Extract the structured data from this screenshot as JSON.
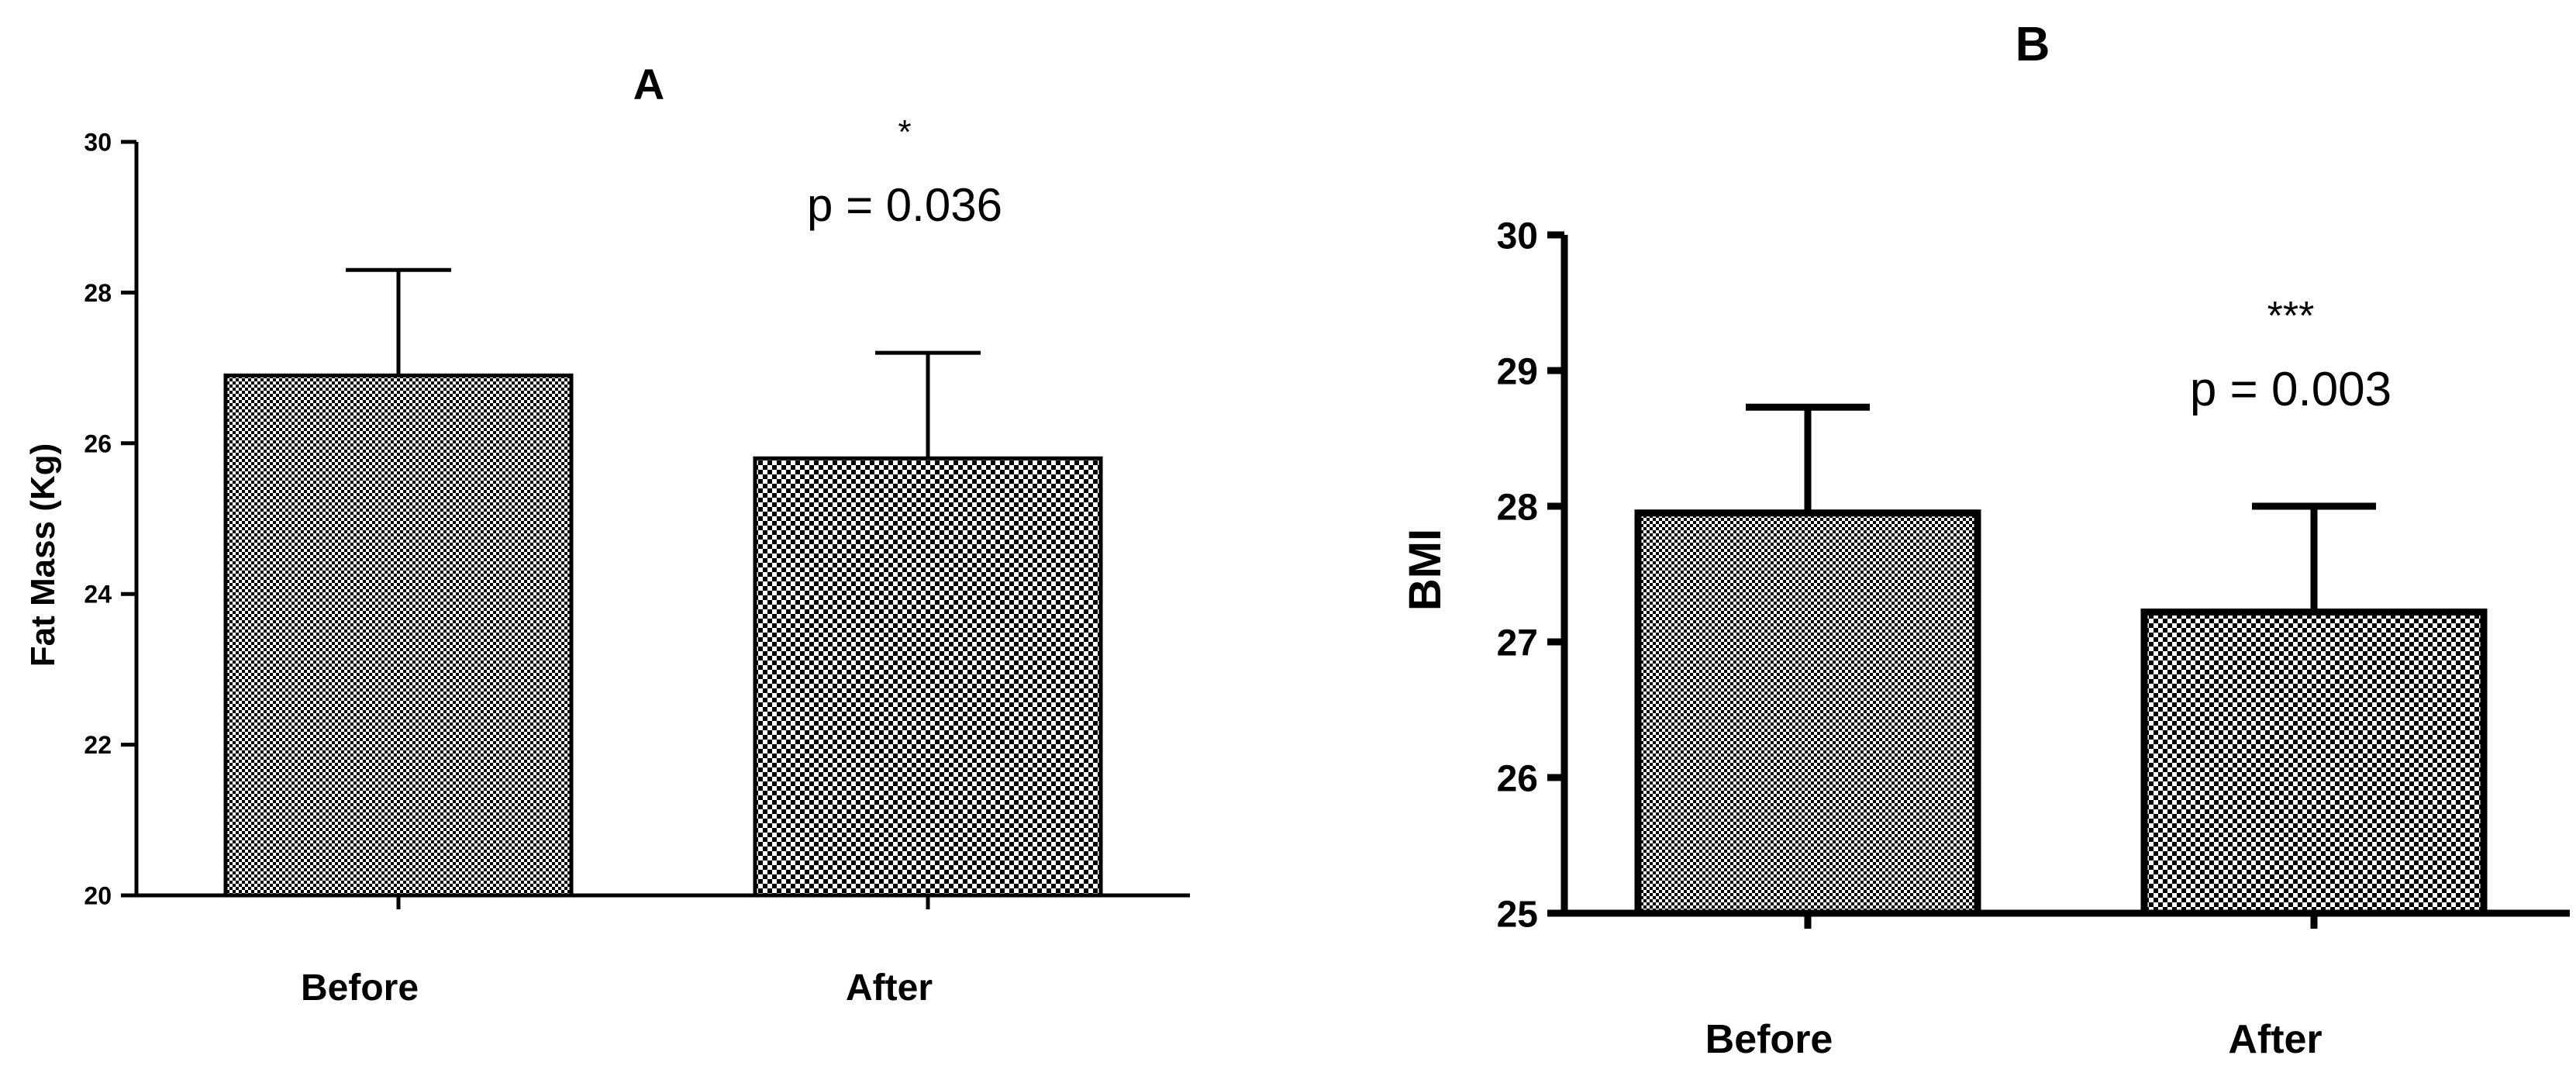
{
  "chart_data": [
    {
      "panel": "A",
      "type": "bar",
      "title": "A",
      "ylabel": "Fat Mass (Kg)",
      "xlabel": "",
      "categories": [
        "Before",
        "After"
      ],
      "values": [
        26.9,
        25.8
      ],
      "errors": [
        1.4,
        1.4
      ],
      "ylim": [
        20,
        30
      ],
      "yticks": [
        "20",
        "22",
        "24",
        "26",
        "28",
        "30"
      ],
      "annotations": [
        {
          "category": "After",
          "significance": "*",
          "pvalue": "p = 0.036"
        }
      ],
      "grid": false,
      "legend": "none"
    },
    {
      "panel": "B",
      "type": "bar",
      "title": "B",
      "ylabel": "BMI",
      "xlabel": "",
      "categories": [
        "Before",
        "After"
      ],
      "values": [
        27.95,
        27.22
      ],
      "errors": [
        0.78,
        0.78
      ],
      "ylim": [
        25,
        30
      ],
      "yticks": [
        "25",
        "26",
        "27",
        "28",
        "29",
        "30"
      ],
      "annotations": [
        {
          "category": "After",
          "significance": "***",
          "pvalue": "p = 0.003"
        }
      ],
      "grid": false,
      "legend": "none"
    }
  ],
  "colors": {
    "axis": "#000000",
    "bar_pattern_fg": "#000000",
    "bar_pattern_bg": "#ffffff"
  }
}
